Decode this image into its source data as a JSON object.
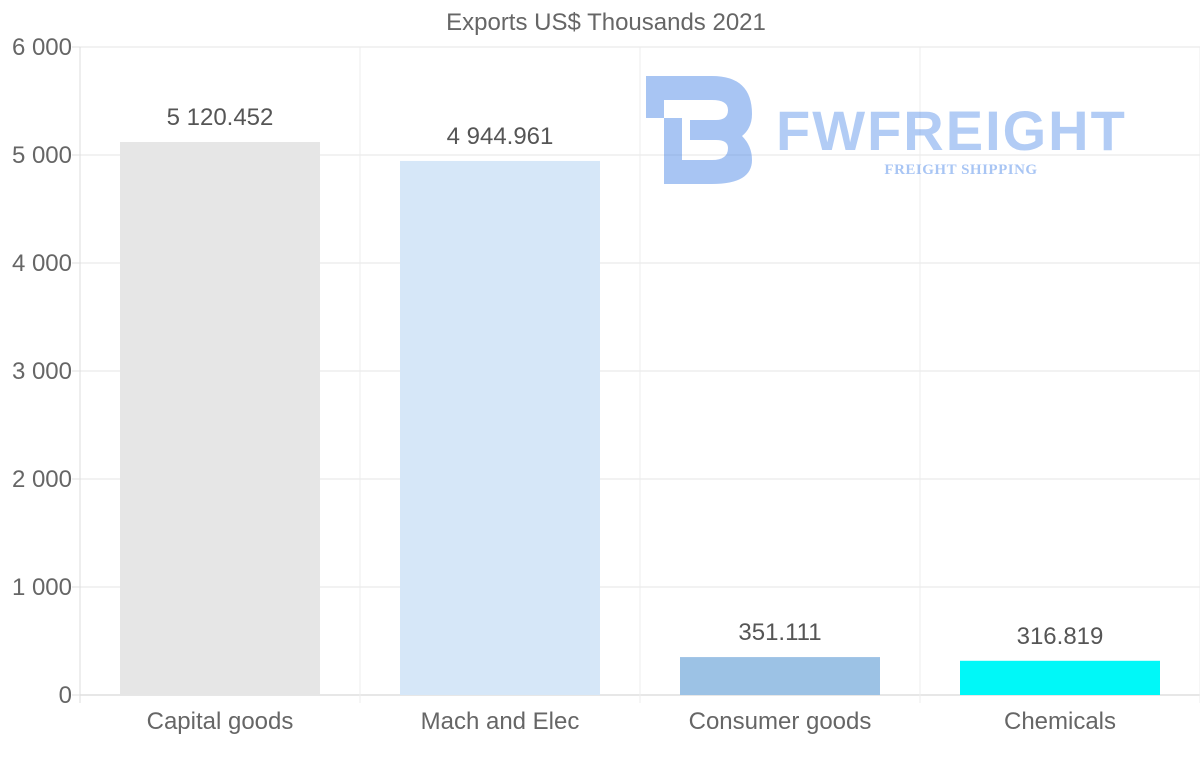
{
  "chart_data": {
    "type": "bar",
    "title": "Exports US$ Thousands 2021",
    "categories": [
      "Capital goods",
      "Mach and Elec",
      "Consumer goods",
      "Chemicals"
    ],
    "values": [
      5120.452,
      4944.961,
      351.111,
      316.819
    ],
    "value_labels": [
      "5 120.452",
      "4 944.961",
      "351.111",
      "316.819"
    ],
    "colors": [
      "#e6e6e6",
      "#d6e7f8",
      "#9cc2e5",
      "#00f8f8"
    ],
    "ylim": [
      0,
      6000
    ],
    "yticks": [
      0,
      1000,
      2000,
      3000,
      4000,
      5000,
      6000
    ],
    "ytick_labels": [
      "0",
      "1 000",
      "2 000",
      "3 000",
      "4 000",
      "5 000",
      "6 000"
    ],
    "xlabel": "",
    "ylabel": "",
    "grid": true,
    "legend": "none"
  },
  "watermark": {
    "brand": "FWFREIGHT",
    "tagline": "FREIGHT SHIPPING",
    "color": "#3f7fe6"
  }
}
